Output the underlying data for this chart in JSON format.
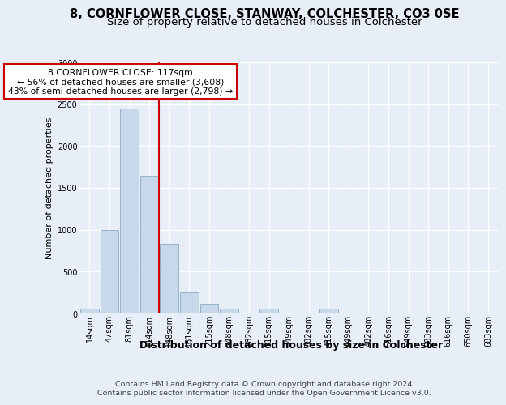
{
  "title_line1": "8, CORNFLOWER CLOSE, STANWAY, COLCHESTER, CO3 0SE",
  "title_line2": "Size of property relative to detached houses in Colchester",
  "xlabel": "Distribution of detached houses by size in Colchester",
  "ylabel": "Number of detached properties",
  "footer_line1": "Contains HM Land Registry data © Crown copyright and database right 2024.",
  "footer_line2": "Contains public sector information licensed under the Open Government Licence v3.0.",
  "annotation_line1": "8 CORNFLOWER CLOSE: 117sqm",
  "annotation_line2": "← 56% of detached houses are smaller (3,608)",
  "annotation_line3": "43% of semi-detached houses are larger (2,798) →",
  "bar_labels": [
    "14sqm",
    "47sqm",
    "81sqm",
    "114sqm",
    "148sqm",
    "181sqm",
    "215sqm",
    "248sqm",
    "282sqm",
    "315sqm",
    "349sqm",
    "382sqm",
    "415sqm",
    "449sqm",
    "482sqm",
    "516sqm",
    "549sqm",
    "583sqm",
    "616sqm",
    "650sqm",
    "683sqm"
  ],
  "bar_values": [
    55,
    1000,
    2450,
    1650,
    830,
    250,
    120,
    55,
    5,
    55,
    0,
    0,
    55,
    0,
    0,
    0,
    0,
    0,
    0,
    0,
    0
  ],
  "bar_color": "#c8d8eb",
  "bar_edge_color": "#8aaac8",
  "vline_color": "#cc0000",
  "vline_x": 3.5,
  "ylim_max": 3000,
  "yticks": [
    0,
    500,
    1000,
    1500,
    2000,
    2500,
    3000
  ],
  "background_color": "#e8eef8",
  "grid_color": "#ffffff",
  "title1_fontsize": 10.5,
  "title2_fontsize": 9.5,
  "ylabel_fontsize": 8,
  "xlabel_fontsize": 9,
  "tick_fontsize": 7,
  "ann_fontsize": 7.8,
  "footer_fontsize": 6.8,
  "ann_box_color": "#cc0000"
}
